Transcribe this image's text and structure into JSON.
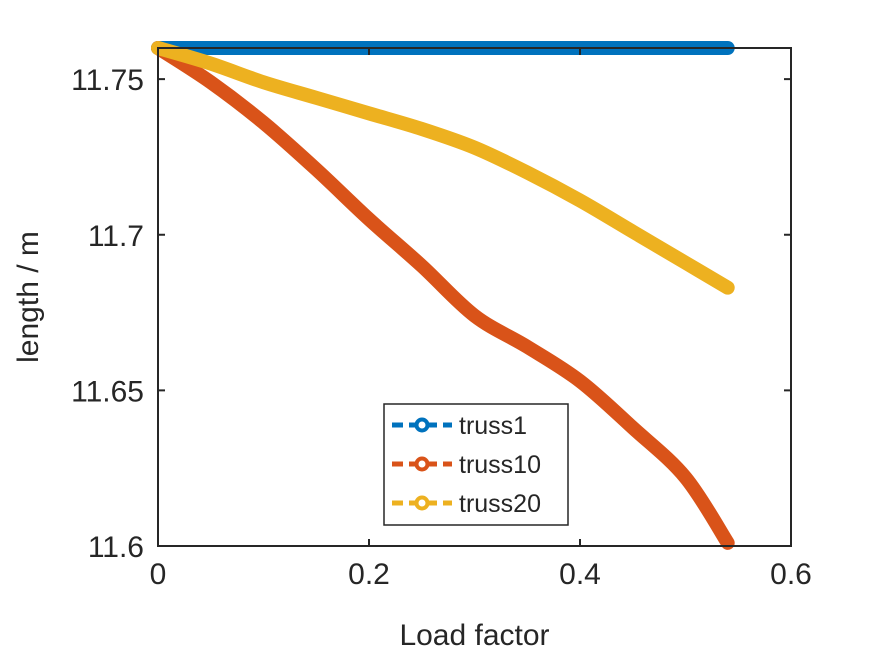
{
  "chart_data": {
    "type": "line",
    "xlabel": "Load factor",
    "ylabel": "length / m",
    "xlim": [
      0,
      0.6
    ],
    "ylim": [
      11.6,
      11.76
    ],
    "xticks": [
      0,
      0.2,
      0.4,
      0.6
    ],
    "xtick_labels": [
      "0",
      "0.2",
      "0.4",
      "0.6"
    ],
    "yticks": [
      11.6,
      11.65,
      11.7,
      11.75
    ],
    "ytick_labels": [
      "11.6",
      "11.65",
      "11.7",
      "11.75"
    ],
    "grid": false,
    "legend_position": "bottom-center",
    "series": [
      {
        "name": "truss1",
        "color": "#0072BD",
        "x": [
          0,
          0.05,
          0.1,
          0.15,
          0.2,
          0.25,
          0.3,
          0.35,
          0.4,
          0.45,
          0.5,
          0.54
        ],
        "y": [
          11.76,
          11.76,
          11.76,
          11.76,
          11.76,
          11.76,
          11.76,
          11.76,
          11.76,
          11.76,
          11.76,
          11.76
        ]
      },
      {
        "name": "truss10",
        "color": "#D95319",
        "x": [
          0,
          0.05,
          0.1,
          0.15,
          0.2,
          0.25,
          0.3,
          0.35,
          0.4,
          0.45,
          0.5,
          0.54
        ],
        "y": [
          11.76,
          11.749,
          11.736,
          11.721,
          11.705,
          11.69,
          11.674,
          11.664,
          11.653,
          11.638,
          11.622,
          11.601
        ]
      },
      {
        "name": "truss20",
        "color": "#EDB120",
        "x": [
          0,
          0.05,
          0.1,
          0.15,
          0.2,
          0.25,
          0.3,
          0.35,
          0.4,
          0.45,
          0.5,
          0.54
        ],
        "y": [
          11.76,
          11.755,
          11.749,
          11.744,
          11.739,
          11.734,
          11.728,
          11.72,
          11.711,
          11.701,
          11.691,
          11.683
        ]
      }
    ]
  }
}
